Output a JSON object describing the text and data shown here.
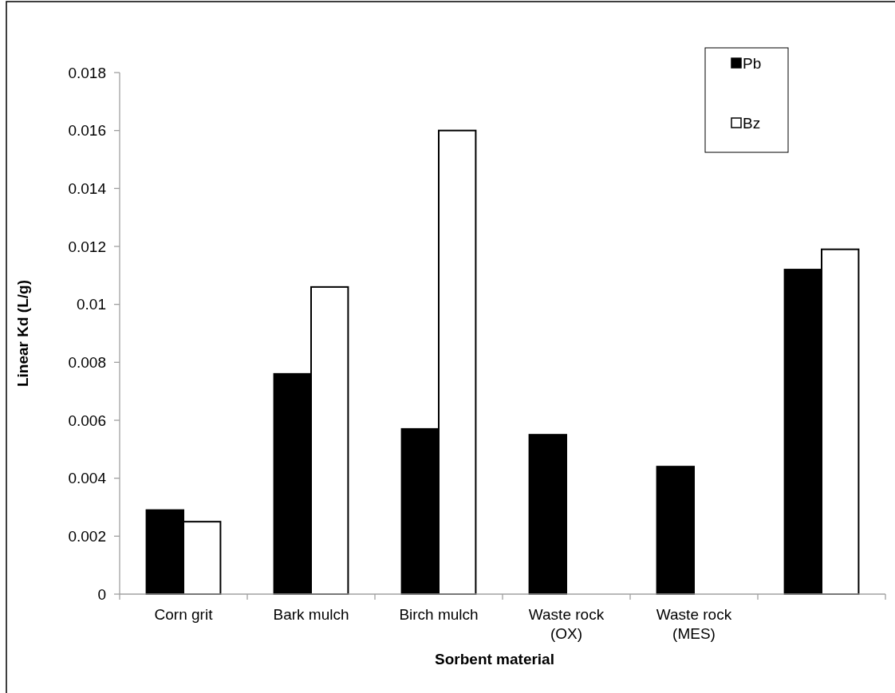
{
  "chart_data": {
    "type": "bar",
    "xlabel": "Sorbent material",
    "ylabel": "Linear Kd (L/g)",
    "categories": [
      "Corn grit",
      "Bark mulch",
      "Birch mulch",
      "Waste rock (OX)",
      "Waste rock (MES)",
      null
    ],
    "series": [
      {
        "name": "Pb",
        "color": "#000000",
        "values": [
          0.0029,
          0.0076,
          0.0057,
          0.0055,
          0.0044,
          0.0112
        ]
      },
      {
        "name": "Bz",
        "color": "#ffffff",
        "values": [
          0.0025,
          0.0106,
          0.016,
          null,
          null,
          0.0119
        ]
      }
    ],
    "ylim": [
      0,
      0.018
    ],
    "yticks": [
      0,
      0.002,
      0.004,
      0.006,
      0.008,
      0.01,
      0.012,
      0.014,
      0.016,
      0.018
    ],
    "grid": false,
    "legend": "top right"
  }
}
